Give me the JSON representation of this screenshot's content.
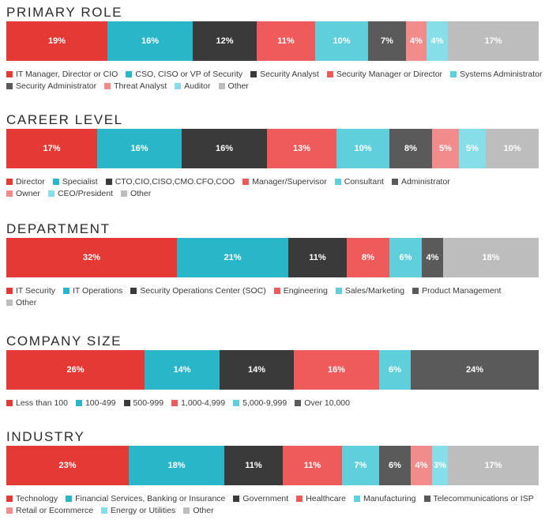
{
  "colors": {
    "red": "#e53935",
    "teal": "#29b6c8",
    "darkgray": "#3a3a3a",
    "salmon": "#ef5b5b",
    "lightteal": "#5fcfdc",
    "midgray": "#5a5a5a",
    "pink": "#f28b8b",
    "paleteal": "#86dfe8",
    "lightgray": "#bdbdbd"
  },
  "chart_data": [
    {
      "type": "bar",
      "title": "PRIMARY ROLE",
      "stacked": true,
      "orientation": "horizontal",
      "series": [
        {
          "name": "IT Manager, Director or CIO",
          "value": 19,
          "label": "19%",
          "color": "#e53935"
        },
        {
          "name": "CSO, CISO or VP of Security",
          "value": 16,
          "label": "16%",
          "color": "#29b6c8"
        },
        {
          "name": "Security Analyst",
          "value": 12,
          "label": "12%",
          "color": "#3a3a3a"
        },
        {
          "name": "Security Manager or Director",
          "value": 11,
          "label": "11%",
          "color": "#ef5b5b"
        },
        {
          "name": "Systems Administrator",
          "value": 10,
          "label": "10%",
          "color": "#5fcfdc"
        },
        {
          "name": "Security Administrator",
          "value": 7,
          "label": "7%",
          "color": "#5a5a5a"
        },
        {
          "name": "Threat Analyst",
          "value": 4,
          "label": "4%",
          "color": "#f28b8b"
        },
        {
          "name": "Auditor",
          "value": 4,
          "label": "4%",
          "color": "#86dfe8"
        },
        {
          "name": "Other",
          "value": 17,
          "label": "17%",
          "color": "#bdbdbd"
        }
      ],
      "legend_rows": [
        [
          0,
          1,
          2,
          3,
          4
        ],
        [
          5,
          6,
          7,
          8
        ]
      ]
    },
    {
      "type": "bar",
      "title": "CAREER LEVEL",
      "stacked": true,
      "orientation": "horizontal",
      "series": [
        {
          "name": "Director",
          "value": 17,
          "label": "17%",
          "color": "#e53935"
        },
        {
          "name": "Specialist",
          "value": 16,
          "label": "16%",
          "color": "#29b6c8"
        },
        {
          "name": "CTO,CIO,CISO,CMO.CFO,COO",
          "value": 16,
          "label": "16%",
          "color": "#3a3a3a"
        },
        {
          "name": "Manager/Supervisor",
          "value": 13,
          "label": "13%",
          "color": "#ef5b5b"
        },
        {
          "name": "Consultant",
          "value": 10,
          "label": "10%",
          "color": "#5fcfdc"
        },
        {
          "name": "Administrator",
          "value": 8,
          "label": "8%",
          "color": "#5a5a5a"
        },
        {
          "name": "Owner",
          "value": 5,
          "label": "5%",
          "color": "#f28b8b"
        },
        {
          "name": "CEO/President",
          "value": 5,
          "label": "5%",
          "color": "#86dfe8"
        },
        {
          "name": "Other",
          "value": 10,
          "label": "10%",
          "color": "#bdbdbd"
        }
      ],
      "legend_rows": [
        [
          0,
          1,
          2,
          3,
          4,
          5
        ],
        [
          6,
          7,
          8
        ]
      ]
    },
    {
      "type": "bar",
      "title": "DEPARTMENT",
      "stacked": true,
      "orientation": "horizontal",
      "series": [
        {
          "name": "IT Security",
          "value": 32,
          "label": "32%",
          "color": "#e53935"
        },
        {
          "name": "IT Operations",
          "value": 21,
          "label": "21%",
          "color": "#29b6c8"
        },
        {
          "name": "Security Operations Center (SOC)",
          "value": 11,
          "label": "11%",
          "color": "#3a3a3a"
        },
        {
          "name": "Engineering",
          "value": 8,
          "label": "8%",
          "color": "#ef5b5b"
        },
        {
          "name": "Sales/Marketing",
          "value": 6,
          "label": "6%",
          "color": "#5fcfdc"
        },
        {
          "name": "Product Management",
          "value": 4,
          "label": "4%",
          "color": "#5a5a5a"
        },
        {
          "name": "Other",
          "value": 18,
          "label": "18%",
          "color": "#bdbdbd"
        }
      ],
      "legend_rows": [
        [
          0,
          1,
          2,
          3,
          4,
          5
        ],
        [
          6
        ]
      ]
    },
    {
      "type": "bar",
      "title": "COMPANY SIZE",
      "stacked": true,
      "orientation": "horizontal",
      "series": [
        {
          "name": "Less than 100",
          "value": 26,
          "label": "26%",
          "color": "#e53935"
        },
        {
          "name": "100-499",
          "value": 14,
          "label": "14%",
          "color": "#29b6c8"
        },
        {
          "name": "500-999",
          "value": 14,
          "label": "14%",
          "color": "#3a3a3a"
        },
        {
          "name": "1,000-4,999",
          "value": 16,
          "label": "16%",
          "color": "#ef5b5b"
        },
        {
          "name": "5,000-9,999",
          "value": 6,
          "label": "6%",
          "color": "#5fcfdc"
        },
        {
          "name": "Over 10,000",
          "value": 24,
          "label": "24%",
          "color": "#5a5a5a"
        }
      ],
      "legend_rows": [
        [
          0,
          1,
          2,
          3,
          4,
          5
        ]
      ]
    },
    {
      "type": "bar",
      "title": "INDUSTRY",
      "stacked": true,
      "orientation": "horizontal",
      "series": [
        {
          "name": "Technology",
          "value": 23,
          "label": "23%",
          "color": "#e53935"
        },
        {
          "name": "Financial Services, Banking or Insurance",
          "value": 18,
          "label": "18%",
          "color": "#29b6c8"
        },
        {
          "name": "Government",
          "value": 11,
          "label": "11%",
          "color": "#3a3a3a"
        },
        {
          "name": "Healthcare",
          "value": 11,
          "label": "11%",
          "color": "#ef5b5b"
        },
        {
          "name": "Manufacturing",
          "value": 7,
          "label": "7%",
          "color": "#5fcfdc"
        },
        {
          "name": "Telecommunications or ISP",
          "value": 6,
          "label": "6%",
          "color": "#5a5a5a"
        },
        {
          "name": "Retail or Ecommerce",
          "value": 4,
          "label": "4%",
          "color": "#f28b8b"
        },
        {
          "name": "Energy or Utilities",
          "value": 3,
          "label": "3%",
          "color": "#86dfe8"
        },
        {
          "name": "Other",
          "value": 17,
          "label": "17%",
          "color": "#bdbdbd"
        }
      ],
      "legend_rows": [
        [
          0,
          1,
          2,
          3,
          4,
          5
        ],
        [
          6,
          7,
          8
        ]
      ]
    }
  ]
}
